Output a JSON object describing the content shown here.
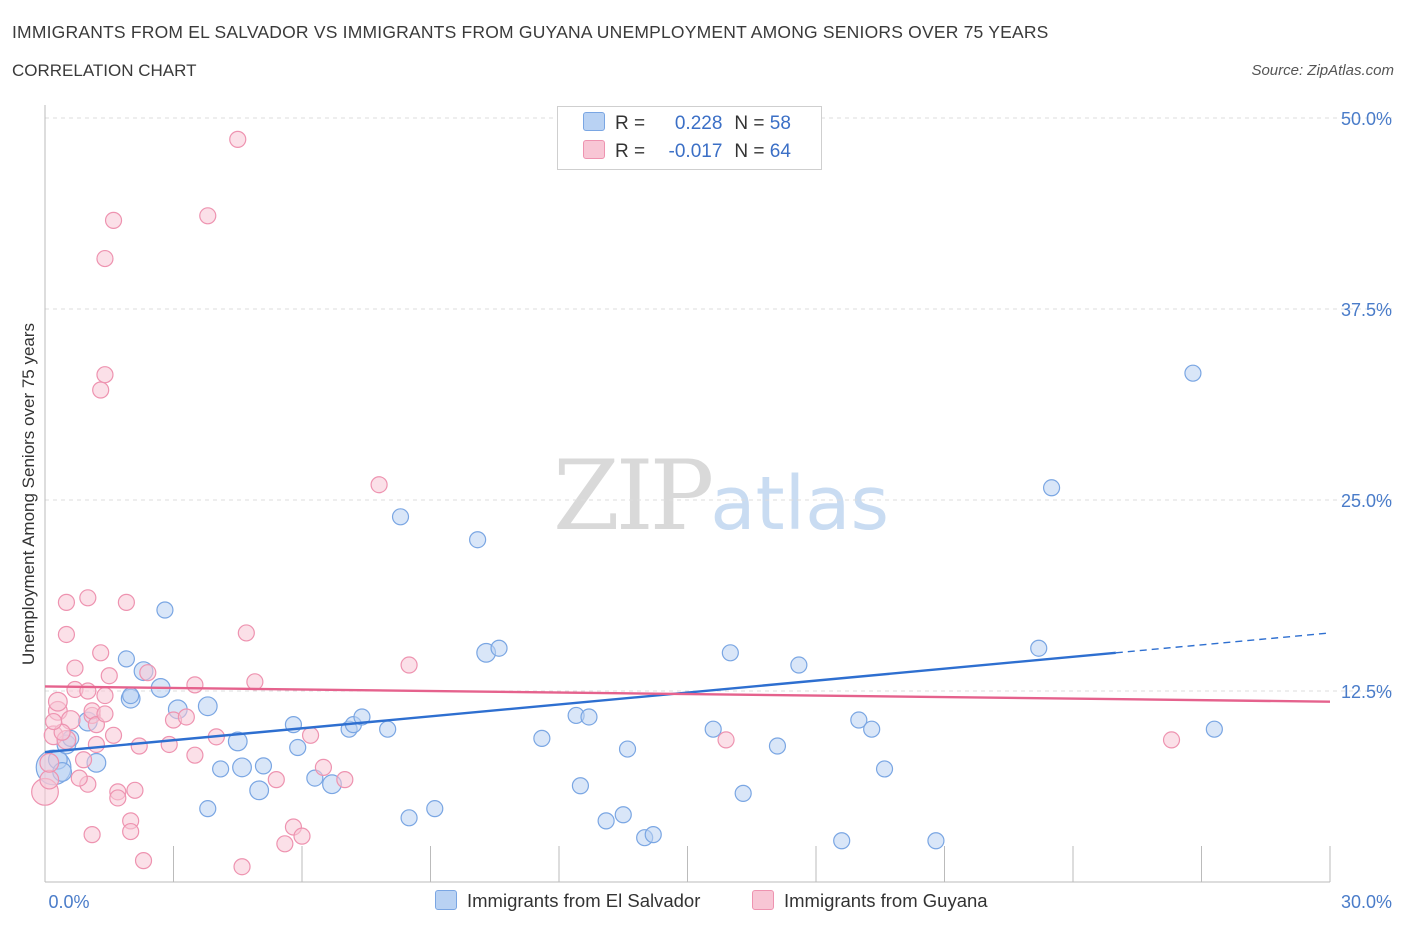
{
  "header": {
    "title": "IMMIGRANTS FROM EL SALVADOR VS IMMIGRANTS FROM GUYANA UNEMPLOYMENT AMONG SENIORS OVER 75 YEARS",
    "subtitle": "CORRELATION CHART",
    "source": "Source: ZipAtlas.com"
  },
  "legend": {
    "r_label": "R =",
    "n_label": "N =",
    "series1": {
      "r": "0.228",
      "n": "58"
    },
    "series2": {
      "r": "-0.017",
      "n": "64"
    }
  },
  "watermark": {
    "zip": "ZIP",
    "atlas": "atlas"
  },
  "colors": {
    "blue_fill": "#b9d2f3",
    "blue_stroke": "#7aa6e3",
    "blue_line": "#2e6fd0",
    "pink_fill": "#f8c6d5",
    "pink_stroke": "#ee93b0",
    "pink_line": "#e5628d",
    "grid": "#dddddd",
    "tick_text": "#4a7cc9"
  },
  "chart_data": {
    "type": "scatter",
    "title": "IMMIGRANTS FROM EL SALVADOR VS IMMIGRANTS FROM GUYANA UNEMPLOYMENT AMONG SENIORS OVER 75 YEARS",
    "xlabel": "",
    "ylabel": "Unemployment Among Seniors over 75 years",
    "xlim": [
      0,
      30
    ],
    "ylim": [
      0,
      50
    ],
    "x_tick_labels": [
      "0.0%",
      "30.0%"
    ],
    "y_ticks": [
      12.5,
      25.0,
      37.5,
      50.0
    ],
    "y_tick_labels": [
      "12.5%",
      "25.0%",
      "37.5%",
      "50.0%"
    ],
    "grid": "horizontal dashed",
    "legend_position": "top-center and bottom",
    "series": [
      {
        "name": "Immigrants from El Salvador",
        "r": 0.228,
        "n": 58,
        "trend": {
          "x": [
            0,
            25
          ],
          "y": [
            8.5,
            15.0
          ],
          "dashed_extension_to": [
            30,
            16.3
          ]
        },
        "points": [
          [
            0.2,
            7.5,
            26
          ],
          [
            0.3,
            8.0,
            14
          ],
          [
            0.4,
            7.2,
            14
          ],
          [
            0.5,
            9.0,
            14
          ],
          [
            1.0,
            10.5,
            14
          ],
          [
            1.2,
            7.8,
            14
          ],
          [
            1.9,
            14.6,
            12
          ],
          [
            2.0,
            12.0,
            14
          ],
          [
            2.3,
            13.8,
            14
          ],
          [
            2.7,
            12.7,
            14
          ],
          [
            2.8,
            17.8,
            12
          ],
          [
            3.1,
            11.3,
            14
          ],
          [
            3.8,
            11.5,
            14
          ],
          [
            4.1,
            7.4,
            12
          ],
          [
            4.5,
            9.2,
            14
          ],
          [
            4.6,
            7.5,
            14
          ],
          [
            5.0,
            6.0,
            14
          ],
          [
            5.8,
            10.3,
            12
          ],
          [
            5.9,
            8.8,
            12
          ],
          [
            6.3,
            6.8,
            12
          ],
          [
            6.7,
            6.4,
            14
          ],
          [
            7.1,
            10.0,
            12
          ],
          [
            7.2,
            10.3,
            12
          ],
          [
            7.4,
            10.8,
            12
          ],
          [
            8.0,
            10.0,
            12
          ],
          [
            8.3,
            23.9,
            12
          ],
          [
            8.5,
            4.2,
            12
          ],
          [
            9.1,
            4.8,
            12
          ],
          [
            10.1,
            22.4,
            12
          ],
          [
            10.3,
            15.0,
            14
          ],
          [
            10.6,
            15.3,
            12
          ],
          [
            11.6,
            9.4,
            12
          ],
          [
            12.4,
            10.9,
            12
          ],
          [
            12.7,
            10.8,
            12
          ],
          [
            12.5,
            6.3,
            12
          ],
          [
            13.1,
            4.0,
            12
          ],
          [
            13.5,
            4.4,
            12
          ],
          [
            13.6,
            8.7,
            12
          ],
          [
            14.0,
            2.9,
            12
          ],
          [
            14.2,
            3.1,
            12
          ],
          [
            15.6,
            10.0,
            12
          ],
          [
            16.0,
            15.0,
            12
          ],
          [
            16.3,
            5.8,
            12
          ],
          [
            17.1,
            8.9,
            12
          ],
          [
            17.6,
            14.2,
            12
          ],
          [
            18.6,
            2.7,
            12
          ],
          [
            19.0,
            10.6,
            12
          ],
          [
            19.3,
            10.0,
            12
          ],
          [
            19.6,
            7.4,
            12
          ],
          [
            20.8,
            2.7,
            12
          ],
          [
            23.2,
            15.3,
            12
          ],
          [
            23.5,
            25.8,
            12
          ],
          [
            26.8,
            33.3,
            12
          ],
          [
            27.3,
            10.0,
            12
          ],
          [
            0.6,
            9.4,
            12
          ],
          [
            2.0,
            12.2,
            12
          ],
          [
            5.1,
            7.6,
            12
          ],
          [
            3.8,
            4.8,
            12
          ]
        ]
      },
      {
        "name": "Immigrants from Guyana",
        "r": -0.017,
        "n": 64,
        "trend": {
          "x": [
            0,
            30
          ],
          "y": [
            12.8,
            11.8
          ]
        },
        "points": [
          [
            0.0,
            5.9,
            20
          ],
          [
            0.1,
            6.7,
            14
          ],
          [
            0.1,
            7.8,
            14
          ],
          [
            0.2,
            9.6,
            14
          ],
          [
            0.3,
            11.2,
            14
          ],
          [
            0.3,
            11.8,
            14
          ],
          [
            0.5,
            9.3,
            14
          ],
          [
            0.6,
            10.6,
            14
          ],
          [
            0.7,
            14.0,
            12
          ],
          [
            0.7,
            12.6,
            12
          ],
          [
            0.5,
            16.2,
            12
          ],
          [
            0.5,
            18.3,
            12
          ],
          [
            0.9,
            8.0,
            12
          ],
          [
            1.0,
            12.5,
            12
          ],
          [
            1.0,
            6.4,
            12
          ],
          [
            1.1,
            10.9,
            12
          ],
          [
            1.1,
            11.2,
            12
          ],
          [
            1.2,
            10.3,
            12
          ],
          [
            1.3,
            15.0,
            12
          ],
          [
            1.4,
            11.0,
            12
          ],
          [
            1.0,
            18.6,
            12
          ],
          [
            1.1,
            3.1,
            12
          ],
          [
            1.4,
            12.2,
            12
          ],
          [
            1.5,
            13.5,
            12
          ],
          [
            1.6,
            9.6,
            12
          ],
          [
            1.7,
            5.9,
            12
          ],
          [
            1.7,
            5.5,
            12
          ],
          [
            1.3,
            32.2,
            12
          ],
          [
            1.4,
            33.2,
            12
          ],
          [
            1.4,
            40.8,
            12
          ],
          [
            1.6,
            43.3,
            12
          ],
          [
            1.9,
            18.3,
            12
          ],
          [
            2.0,
            4.0,
            12
          ],
          [
            2.0,
            3.3,
            12
          ],
          [
            2.2,
            8.9,
            12
          ],
          [
            2.3,
            1.4,
            12
          ],
          [
            2.4,
            13.7,
            12
          ],
          [
            2.9,
            9.0,
            12
          ],
          [
            3.0,
            10.6,
            12
          ],
          [
            3.5,
            12.9,
            12
          ],
          [
            3.5,
            8.3,
            12
          ],
          [
            3.8,
            43.6,
            12
          ],
          [
            4.5,
            48.6,
            12
          ],
          [
            4.6,
            1.0,
            12
          ],
          [
            4.7,
            16.3,
            12
          ],
          [
            4.9,
            13.1,
            12
          ],
          [
            5.4,
            6.7,
            12
          ],
          [
            5.6,
            2.5,
            12
          ],
          [
            5.8,
            3.6,
            12
          ],
          [
            6.2,
            9.6,
            12
          ],
          [
            6.5,
            7.5,
            12
          ],
          [
            7.0,
            6.7,
            12
          ],
          [
            7.8,
            26.0,
            12
          ],
          [
            8.5,
            14.2,
            12
          ],
          [
            15.9,
            9.3,
            12
          ],
          [
            26.3,
            9.3,
            12
          ],
          [
            1.2,
            9.0,
            12
          ],
          [
            0.8,
            6.8,
            12
          ],
          [
            0.4,
            9.8,
            12
          ],
          [
            2.1,
            6.0,
            12
          ],
          [
            3.3,
            10.8,
            12
          ],
          [
            6.0,
            3.0,
            12
          ],
          [
            4.0,
            9.5,
            12
          ],
          [
            0.2,
            10.5,
            12
          ]
        ]
      }
    ]
  }
}
